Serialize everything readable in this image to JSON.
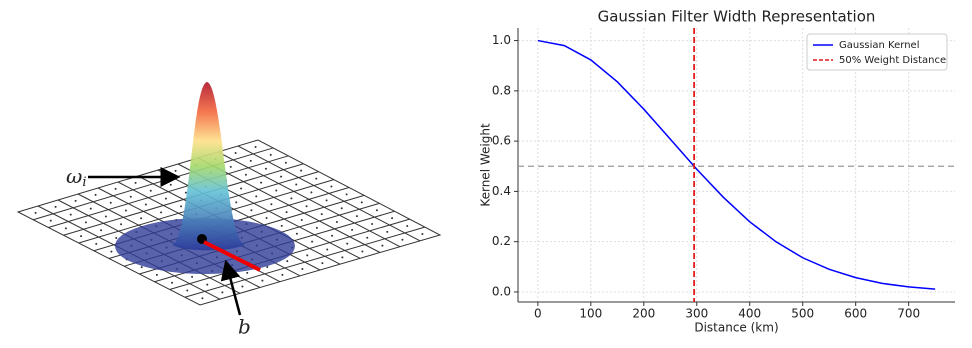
{
  "diagram": {
    "weight_label": "ω",
    "weight_subscript": "i",
    "distance_label": "b"
  },
  "chart_data": {
    "type": "line",
    "title": "Gaussian Filter Width Representation",
    "x_label": "Distance (km)",
    "y_label": "Kernel Weight",
    "x": [
      0,
      50,
      100,
      150,
      200,
      250,
      300,
      350,
      400,
      450,
      500,
      550,
      600,
      650,
      700,
      750
    ],
    "series": [
      {
        "name": "Gaussian Kernel",
        "color": "#0000ff",
        "values": [
          1.0,
          0.98,
          0.923,
          0.836,
          0.727,
          0.608,
          0.488,
          0.377,
          0.279,
          0.199,
          0.136,
          0.09,
          0.057,
          0.034,
          0.02,
          0.011
        ]
      }
    ],
    "vline": {
      "name": "50% Weight Distance",
      "color": "#e41a1c",
      "x": 295
    },
    "hline": {
      "y": 0.5,
      "color": "#999999"
    },
    "xlim": [
      -37.5,
      787.5
    ],
    "ylim": [
      -0.04,
      1.05
    ],
    "xticks": [
      0,
      100,
      200,
      300,
      400,
      500,
      600,
      700
    ],
    "yticks": [
      {
        "value": 0,
        "label": "0.0"
      },
      0.2,
      0.4,
      0.6,
      0.8,
      {
        "value": 1,
        "label": "1.0"
      }
    ],
    "grid": true,
    "legend": "upper right"
  }
}
